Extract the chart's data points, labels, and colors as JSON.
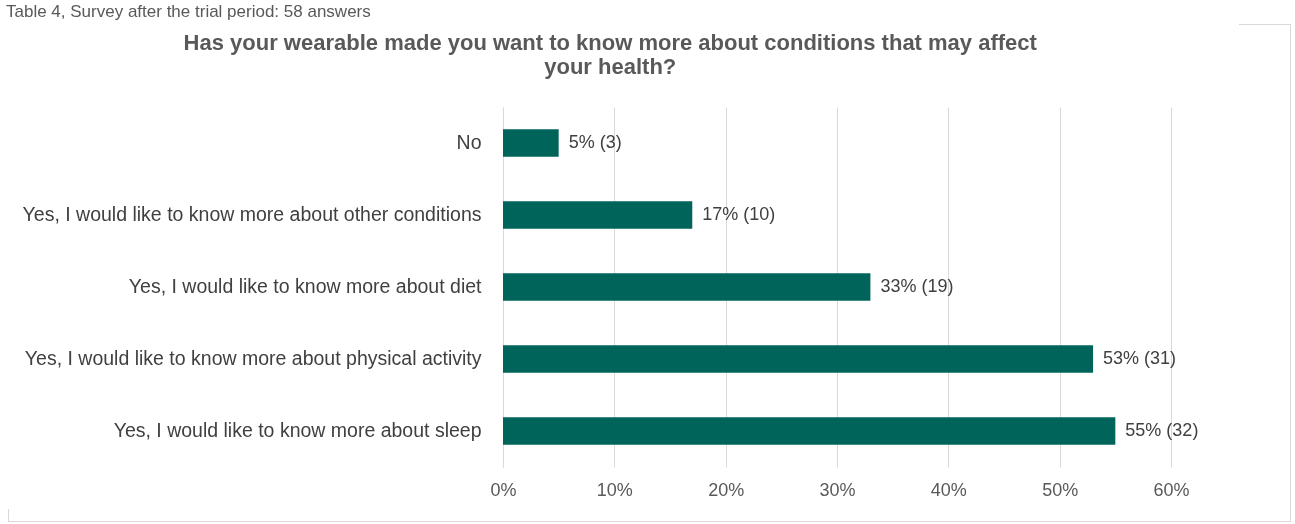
{
  "chart_data": {
    "type": "bar",
    "orientation": "horizontal",
    "title": "Has your wearable made you want to know more about conditions that may affect your health?",
    "annotations": [
      "Table 4, Survey after the trial period: 58 answers"
    ],
    "categories": [
      "No",
      "Yes, I would like to know more about other conditions",
      "Yes, I would like to know more about diet",
      "Yes, I would like to know more about physical activity",
      "Yes, I would like to know more about sleep"
    ],
    "values": [
      5,
      17,
      33,
      53,
      55
    ],
    "value_labels": [
      "5% (3)",
      "17% (10)",
      "33% (19)",
      "53% (31)",
      "55% (32)"
    ],
    "color": "#00645a",
    "xlim": [
      0,
      60
    ],
    "xticks": [
      {
        "value": 0,
        "label": "0%"
      },
      {
        "value": 10,
        "label": "10%"
      },
      {
        "value": 20,
        "label": "20%"
      },
      {
        "value": 30,
        "label": "30%"
      },
      {
        "value": 40,
        "label": "40%"
      },
      {
        "value": 50,
        "label": "50%"
      },
      {
        "value": 60,
        "label": "60%"
      }
    ],
    "grid": "x"
  }
}
